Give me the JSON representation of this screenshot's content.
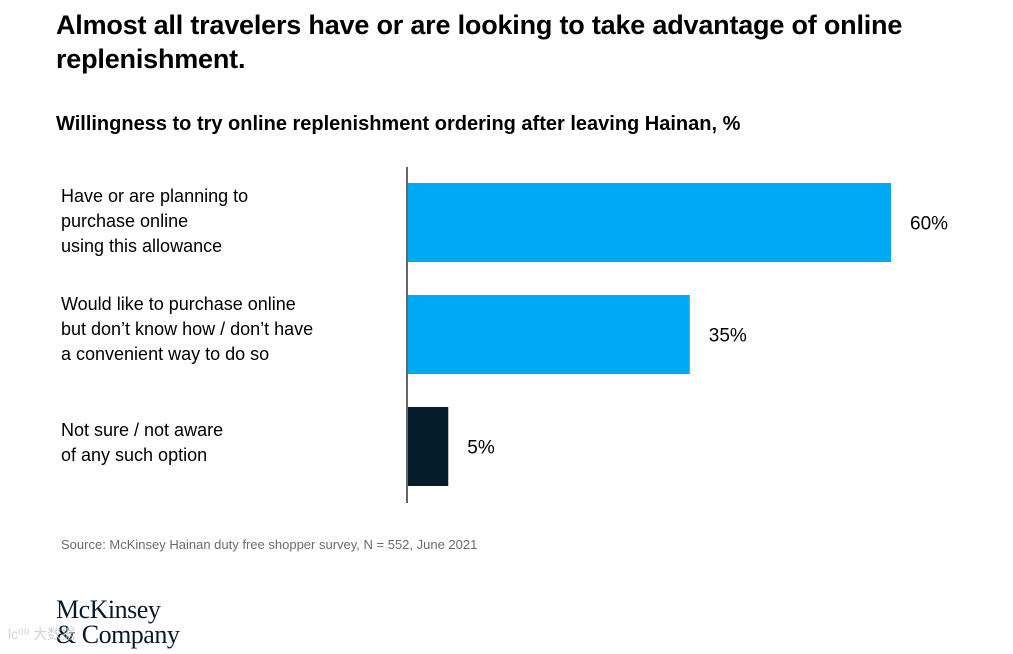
{
  "header": {
    "title": "Almost all travelers have or are looking to take advantage of online replenishment.",
    "subtitle": "Willingness to try online replenishment ordering after leaving Hainan, %"
  },
  "chart_data": {
    "type": "bar",
    "orientation": "horizontal",
    "title": "Willingness to try online replenishment ordering after leaving Hainan, %",
    "categories": [
      "Have or are planning to\npurchase online\nusing this allowance",
      "Would like to purchase online\nbut don’t know how / don’t have\n a convenient way to do so",
      "Not sure / not aware\nof any such option"
    ],
    "values": [
      60,
      35,
      5
    ],
    "value_labels": [
      "60%",
      "35%",
      "5%"
    ],
    "colors": [
      "#00a9f4",
      "#00a9f4",
      "#051c2c"
    ],
    "xlim": [
      0,
      60
    ],
    "grid": false,
    "legend": "none"
  },
  "footer": {
    "source": "Source: McKinsey Hainan duty free shopper survey, N = 552, June 2021",
    "logo_line1": "McKinsey",
    "logo_line2": "& Company",
    "watermark": "lc⁰⁰ 大数据"
  }
}
